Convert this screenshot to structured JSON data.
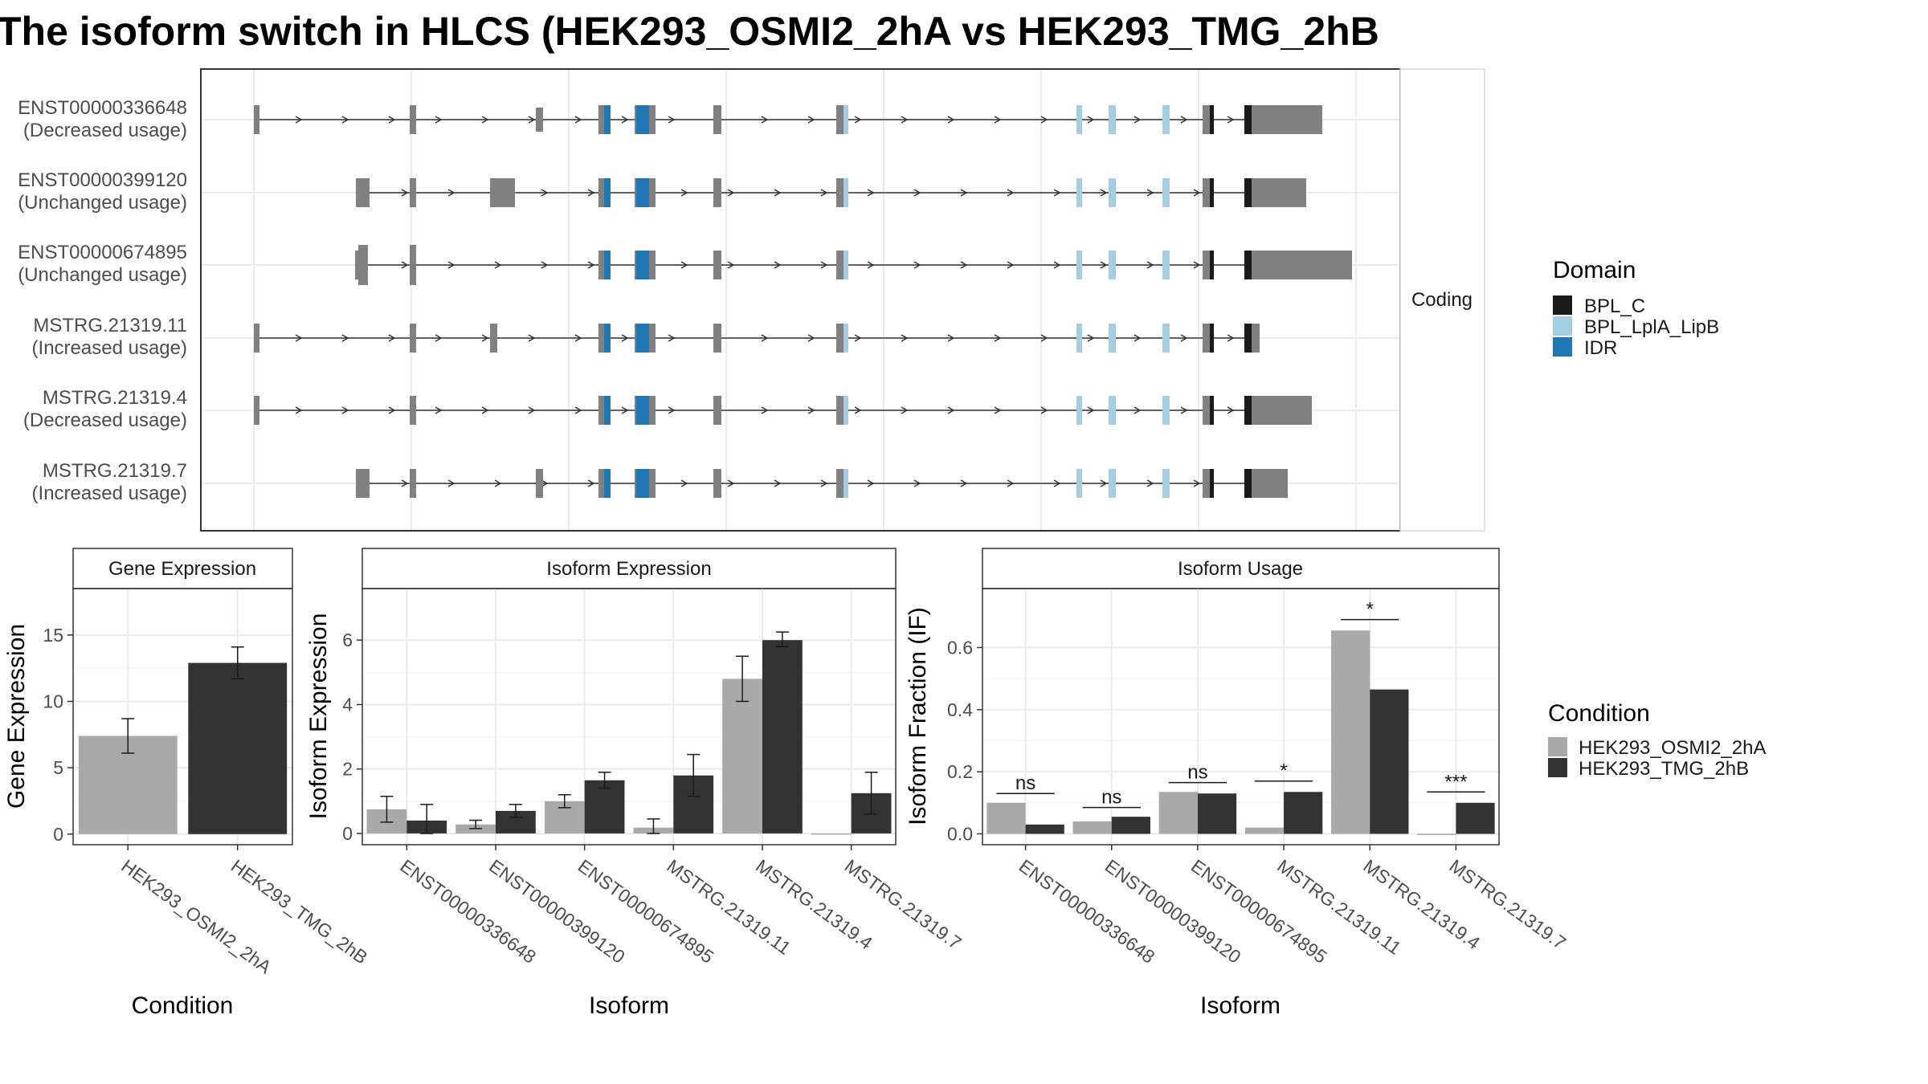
{
  "title": "The isoform switch in HLCS (HEK293_OSMI2_2hA vs HEK293_TMG_2hB",
  "colors": {
    "exon": "#808080",
    "BPL_C": "#1a1a1a",
    "BPL_LplA_LipB": "#a6cee3",
    "IDR": "#1f78b4",
    "cond_a": "#a9a9a9",
    "cond_b": "#333333"
  },
  "structure": {
    "strip_label": "Coding",
    "isoforms": [
      {
        "id": "ENST00000336648",
        "usage": "(Decreased usage)"
      },
      {
        "id": "ENST00000399120",
        "usage": "(Unchanged usage)"
      },
      {
        "id": "ENST00000674895",
        "usage": "(Unchanged usage)"
      },
      {
        "id": "MSTRG.21319.11",
        "usage": "(Increased usage)"
      },
      {
        "id": "MSTRG.21319.4",
        "usage": "(Decreased usage)"
      },
      {
        "id": "MSTRG.21319.7",
        "usage": "(Increased usage)"
      }
    ]
  },
  "legend_domain": {
    "title": "Domain",
    "items": [
      {
        "label": "BPL_C",
        "color": "#1a1a1a"
      },
      {
        "label": "BPL_LplA_LipB",
        "color": "#a6cee3"
      },
      {
        "label": "IDR",
        "color": "#1f78b4"
      }
    ]
  },
  "legend_condition": {
    "title": "Condition",
    "items": [
      {
        "label": "HEK293_OSMI2_2hA",
        "color": "#a9a9a9"
      },
      {
        "label": "HEK293_TMG_2hB",
        "color": "#333333"
      }
    ]
  },
  "chart_data": [
    {
      "type": "bar",
      "title": "Gene Expression",
      "xlabel": "Condition",
      "ylabel": "Gene Expression",
      "categories": [
        "HEK293_OSMI2_2hA",
        "HEK293_TMG_2hB"
      ],
      "values": [
        7.4,
        12.9
      ],
      "error_low": [
        6.1,
        11.7
      ],
      "error_high": [
        8.7,
        14.1
      ],
      "ylim": [
        -0.8,
        18.5
      ],
      "yticks": [
        0,
        5,
        10,
        15
      ]
    },
    {
      "type": "bar",
      "title": "Isoform Expression",
      "xlabel": "Isoform",
      "ylabel": "Isoform Expression",
      "categories": [
        "ENST00000336648",
        "ENST00000399120",
        "ENST00000674895",
        "MSTRG.21319.11",
        "MSTRG.21319.4",
        "MSTRG.21319.7"
      ],
      "series": [
        {
          "name": "HEK293_OSMI2_2hA",
          "values": [
            0.75,
            0.28,
            1.0,
            0.18,
            4.8,
            0.0
          ],
          "error_low": [
            0.35,
            0.15,
            0.8,
            0.0,
            4.1,
            0.0
          ],
          "error_high": [
            1.15,
            0.41,
            1.2,
            0.45,
            5.5,
            0.0
          ]
        },
        {
          "name": "HEK293_TMG_2hB",
          "values": [
            0.4,
            0.7,
            1.65,
            1.8,
            6.0,
            1.25
          ],
          "error_low": [
            0.0,
            0.5,
            1.4,
            1.15,
            5.8,
            0.6
          ],
          "error_high": [
            0.9,
            0.9,
            1.9,
            2.45,
            6.25,
            1.9
          ]
        }
      ],
      "ylim": [
        -0.35,
        7.6
      ],
      "yticks": [
        0,
        2,
        4,
        6
      ]
    },
    {
      "type": "bar",
      "title": "Isoform Usage",
      "xlabel": "Isoform",
      "ylabel": "Isoform Fraction (IF)",
      "categories": [
        "ENST00000336648",
        "ENST00000399120",
        "ENST00000674895",
        "MSTRG.21319.11",
        "MSTRG.21319.4",
        "MSTRG.21319.7"
      ],
      "series": [
        {
          "name": "HEK293_OSMI2_2hA",
          "values": [
            0.1,
            0.04,
            0.135,
            0.02,
            0.655,
            0.0
          ]
        },
        {
          "name": "HEK293_TMG_2hB",
          "values": [
            0.03,
            0.055,
            0.13,
            0.135,
            0.465,
            0.1
          ]
        }
      ],
      "significance": [
        {
          "label": "ns",
          "y": 0.13
        },
        {
          "label": "ns",
          "y": 0.085
        },
        {
          "label": "ns",
          "y": 0.165
        },
        {
          "label": "*",
          "y": 0.17
        },
        {
          "label": "*",
          "y": 0.69
        },
        {
          "label": "***",
          "y": 0.135
        }
      ],
      "ylim": [
        -0.035,
        0.79
      ],
      "yticks": [
        0.0,
        0.2,
        0.4,
        0.6
      ],
      "ytick_labels": [
        "0.0",
        "0.2",
        "0.4",
        "0.6"
      ]
    }
  ]
}
